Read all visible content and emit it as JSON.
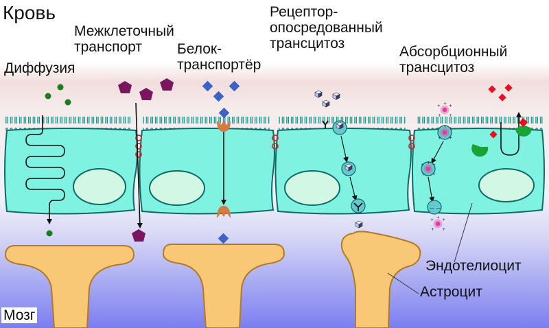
{
  "labels": {
    "blood": "Кровь",
    "brain": "Мозг",
    "diffusion": "Диффузия",
    "intercellular": [
      "Межклеточный",
      "транспорт"
    ],
    "carrier": [
      "Белок-",
      "транспортёр"
    ],
    "receptor": [
      "Рецептор-",
      "опосредованный",
      "трансцитоз"
    ],
    "absorptive": [
      "Абсорбционный",
      "трансцитоз"
    ],
    "endothelium": "Эндотелиоцит",
    "astrocyte": "Астроцит"
  },
  "colors": {
    "cell_fill": "#7ff2e2",
    "cell_stroke": "#0d6b66",
    "nucleus_fill": "#d2f7e4",
    "astrocyte_fill": "#f8c877",
    "astrocyte_stroke": "#b27a25",
    "diffusion_molecule": "#1b7d1e",
    "intercellular_molecule": "#7a1560",
    "carrier_molecule": "#3b62c6",
    "carrier_protein": "#d47a45",
    "receptor_ligand": "#c5cbe8",
    "absorptive_ligand": "#e83aa0",
    "absorptive_receptor": "#19a334",
    "absorptive_cargo": "#e8101c",
    "junction": "#c23030",
    "brain_bg": "#7b7eef"
  }
}
